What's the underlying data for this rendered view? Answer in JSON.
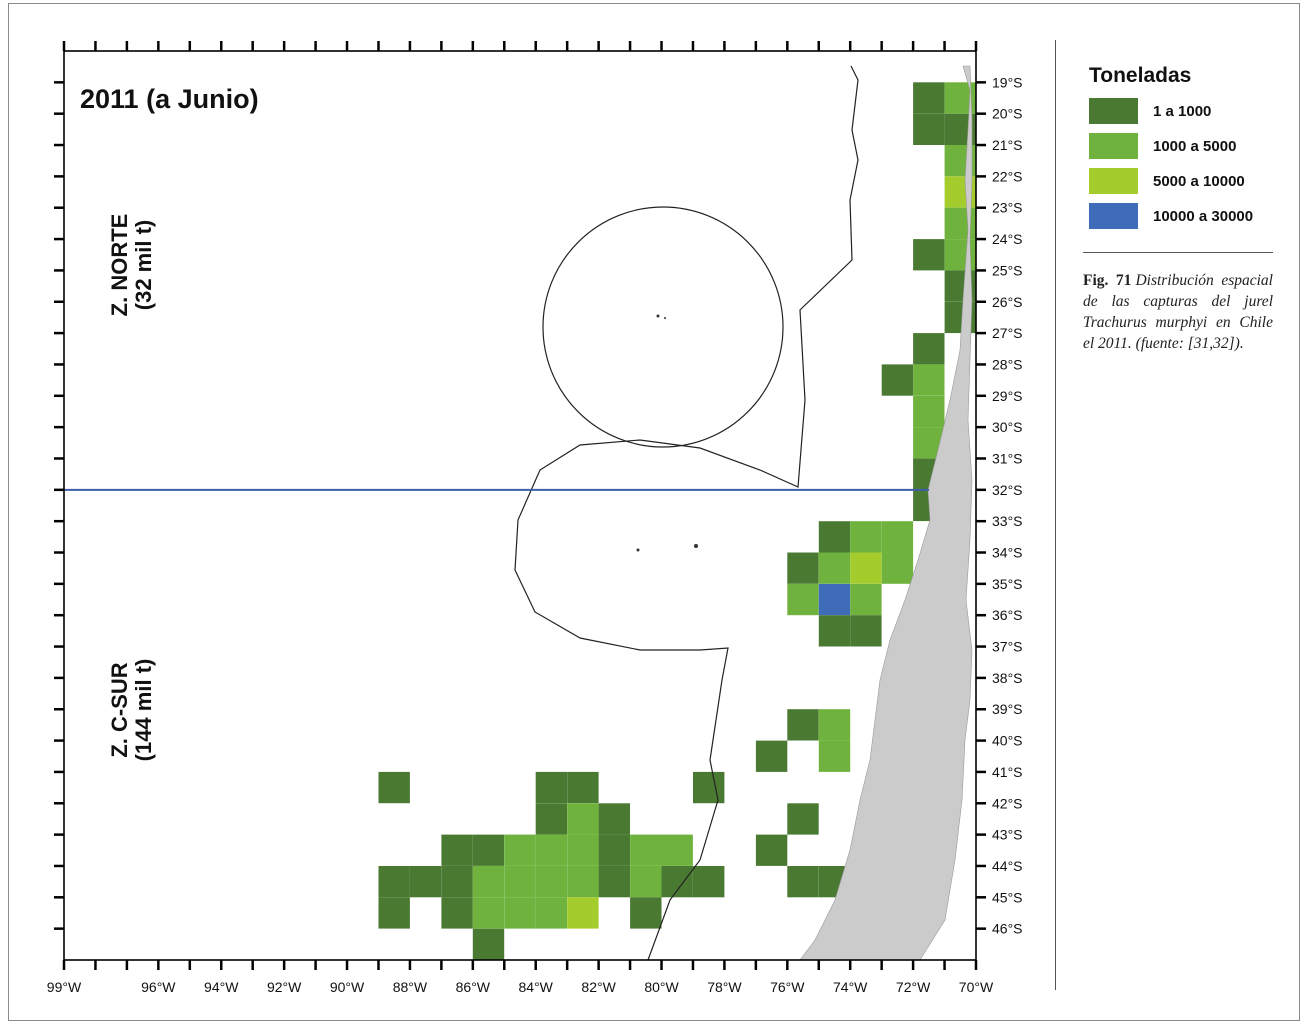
{
  "map": {
    "title": "2011 (a Junio)",
    "zones": [
      {
        "line1": "Z. NORTE",
        "line2": "(32 mil t)"
      },
      {
        "line1": "Z. C-SUR",
        "line2": "(144 mil t)"
      }
    ],
    "boundary_latitude": -32,
    "lon_range": [
      -99,
      -70
    ],
    "lat_range": [
      -47,
      -18
    ],
    "lon_ticks": [
      "99°W",
      "96°W",
      "94°W",
      "92°W",
      "90°W",
      "88°W",
      "86°W",
      "84°W",
      "82°W",
      "80°W",
      "78°W",
      "76°W",
      "74°W",
      "72°W",
      "70°W"
    ],
    "lat_ticks": [
      "19°S",
      "20°S",
      "21°S",
      "22°S",
      "23°S",
      "24°S",
      "25°S",
      "26°S",
      "27°S",
      "28°S",
      "29°S",
      "30°S",
      "31°S",
      "32°S",
      "33°S",
      "34°S",
      "35°S",
      "36°S",
      "37°S",
      "38°S",
      "39°S",
      "40°S",
      "41°S",
      "42°S",
      "43°S",
      "44°S",
      "45°S",
      "46°S"
    ],
    "colors": {
      "c1": "#4a7a32",
      "c2": "#6fb33e",
      "c3": "#a3cc2c",
      "c4": "#3f6cb8",
      "land": "#cbcbcb",
      "boundary_line": "#3f5ea8"
    },
    "catch_cells": [
      {
        "lon": -71,
        "lat": -19,
        "c": 1
      },
      {
        "lon": -70,
        "lat": -19,
        "c": 2
      },
      {
        "lon": -71,
        "lat": -20,
        "c": 1
      },
      {
        "lon": -70,
        "lat": -20,
        "c": 1
      },
      {
        "lon": -70,
        "lat": -21,
        "c": 2
      },
      {
        "lon": -70,
        "lat": -22,
        "c": 3
      },
      {
        "lon": -70,
        "lat": -23,
        "c": 2
      },
      {
        "lon": -71,
        "lat": -24,
        "c": 1
      },
      {
        "lon": -70,
        "lat": -24,
        "c": 2
      },
      {
        "lon": -70,
        "lat": -25,
        "c": 1
      },
      {
        "lon": -70,
        "lat": -26,
        "c": 1
      },
      {
        "lon": -71,
        "lat": -27,
        "c": 1
      },
      {
        "lon": -72,
        "lat": -28,
        "c": 1
      },
      {
        "lon": -71,
        "lat": -28,
        "c": 2
      },
      {
        "lon": -71,
        "lat": -29,
        "c": 2
      },
      {
        "lon": -71,
        "lat": -30,
        "c": 2
      },
      {
        "lon": -71,
        "lat": -31,
        "c": 1
      },
      {
        "lon": -71,
        "lat": -32,
        "c": 1
      },
      {
        "lon": -74,
        "lat": -33,
        "c": 1
      },
      {
        "lon": -73,
        "lat": -33,
        "c": 2
      },
      {
        "lon": -72,
        "lat": -33,
        "c": 2
      },
      {
        "lon": -75,
        "lat": -34,
        "c": 1
      },
      {
        "lon": -74,
        "lat": -34,
        "c": 2
      },
      {
        "lon": -73,
        "lat": -34,
        "c": 3
      },
      {
        "lon": -72,
        "lat": -34,
        "c": 2
      },
      {
        "lon": -75,
        "lat": -35,
        "c": 2
      },
      {
        "lon": -74,
        "lat": -35,
        "c": 4
      },
      {
        "lon": -73,
        "lat": -35,
        "c": 2
      },
      {
        "lon": -74,
        "lat": -36,
        "c": 1
      },
      {
        "lon": -73,
        "lat": -36,
        "c": 1
      },
      {
        "lon": -75,
        "lat": -39,
        "c": 1
      },
      {
        "lon": -76,
        "lat": -40,
        "c": 1
      },
      {
        "lon": -74,
        "lat": -39,
        "c": 2
      },
      {
        "lon": -74,
        "lat": -40,
        "c": 2
      },
      {
        "lon": -75,
        "lat": -42,
        "c": 1
      },
      {
        "lon": -76,
        "lat": -43,
        "c": 1
      },
      {
        "lon": -75,
        "lat": -44,
        "c": 1
      },
      {
        "lon": -74,
        "lat": -44,
        "c": 1
      },
      {
        "lon": -88,
        "lat": -41,
        "c": 1
      },
      {
        "lon": -78,
        "lat": -41,
        "c": 1
      },
      {
        "lon": -83,
        "lat": -41,
        "c": 1
      },
      {
        "lon": -82,
        "lat": -41,
        "c": 1
      },
      {
        "lon": -83,
        "lat": -42,
        "c": 1
      },
      {
        "lon": -82,
        "lat": -42,
        "c": 2
      },
      {
        "lon": -81,
        "lat": -42,
        "c": 1
      },
      {
        "lon": -86,
        "lat": -43,
        "c": 1
      },
      {
        "lon": -85,
        "lat": -43,
        "c": 1
      },
      {
        "lon": -84,
        "lat": -43,
        "c": 2
      },
      {
        "lon": -83,
        "lat": -43,
        "c": 2
      },
      {
        "lon": -82,
        "lat": -43,
        "c": 2
      },
      {
        "lon": -81,
        "lat": -43,
        "c": 1
      },
      {
        "lon": -80,
        "lat": -43,
        "c": 2
      },
      {
        "lon": -79,
        "lat": -43,
        "c": 2
      },
      {
        "lon": -88,
        "lat": -44,
        "c": 1
      },
      {
        "lon": -87,
        "lat": -44,
        "c": 1
      },
      {
        "lon": -86,
        "lat": -44,
        "c": 1
      },
      {
        "lon": -85,
        "lat": -44,
        "c": 2
      },
      {
        "lon": -84,
        "lat": -44,
        "c": 2
      },
      {
        "lon": -83,
        "lat": -44,
        "c": 2
      },
      {
        "lon": -82,
        "lat": -44,
        "c": 2
      },
      {
        "lon": -81,
        "lat": -44,
        "c": 1
      },
      {
        "lon": -80,
        "lat": -44,
        "c": 2
      },
      {
        "lon": -79,
        "lat": -44,
        "c": 1
      },
      {
        "lon": -78,
        "lat": -44,
        "c": 1
      },
      {
        "lon": -88,
        "lat": -45,
        "c": 1
      },
      {
        "lon": -86,
        "lat": -45,
        "c": 1
      },
      {
        "lon": -85,
        "lat": -45,
        "c": 2
      },
      {
        "lon": -84,
        "lat": -45,
        "c": 2
      },
      {
        "lon": -83,
        "lat": -45,
        "c": 2
      },
      {
        "lon": -82,
        "lat": -45,
        "c": 3
      },
      {
        "lon": -80,
        "lat": -45,
        "c": 1
      },
      {
        "lon": -85,
        "lat": -46,
        "c": 1
      }
    ]
  },
  "legend": {
    "title": "Toneladas",
    "items": [
      {
        "label": "1 a 1000",
        "color": "#4a7a32"
      },
      {
        "label": "1000 a 5000",
        "color": "#6fb33e"
      },
      {
        "label": "5000 a 10000",
        "color": "#a3cc2c"
      },
      {
        "label": "10000 a 30000",
        "color": "#3f6cb8"
      }
    ]
  },
  "caption": {
    "fig": "Fig. 71",
    "text": "Distribución espacial de las capturas del jurel Trachurus murphyi en Chile el 2011. (fuente: [31,32])."
  }
}
